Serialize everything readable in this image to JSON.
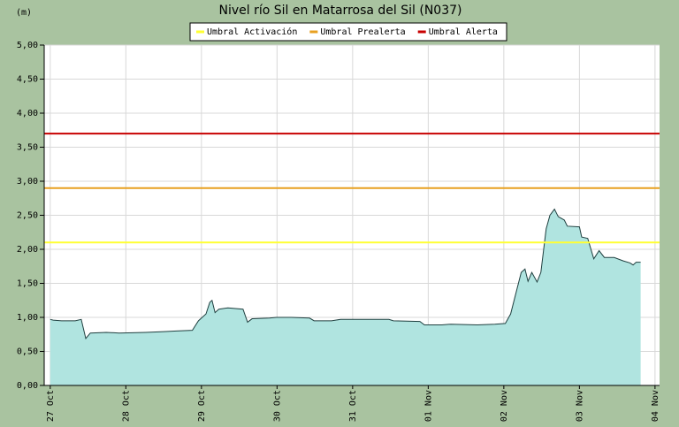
{
  "chart_data": {
    "type": "area",
    "title": "Nivel río Sil en Matarrosa del Sil  (N037)",
    "y_label": "(m)",
    "series": [
      {
        "color": "#b0e4e0",
        "line_color": "#1f3f3f",
        "x": [
          0,
          0.04,
          0.15,
          0.33,
          0.41,
          0.47,
          0.53,
          0.74,
          0.91,
          1.26,
          1.5,
          1.67,
          1.88,
          1.96,
          2.06,
          2.11,
          2.14,
          2.18,
          2.23,
          2.35,
          2.55,
          2.61,
          2.67,
          2.9,
          2.99,
          3.19,
          3.43,
          3.49,
          3.72,
          3.84,
          4.48,
          4.54,
          4.89,
          4.95,
          5.18,
          5.3,
          5.65,
          5.88,
          6.02,
          6.09,
          6.17,
          6.23,
          6.28,
          6.32,
          6.37,
          6.44,
          6.49,
          6.56,
          6.61,
          6.67,
          6.72,
          6.8,
          6.84,
          7.0,
          7.03,
          7.11,
          7.19,
          7.26,
          7.33,
          7.46,
          7.58,
          7.67,
          7.71,
          7.75,
          7.81
        ],
        "values": [
          0.97,
          0.96,
          0.95,
          0.95,
          0.97,
          0.69,
          0.77,
          0.78,
          0.77,
          0.78,
          0.79,
          0.8,
          0.81,
          0.95,
          1.05,
          1.22,
          1.25,
          1.07,
          1.12,
          1.14,
          1.12,
          0.93,
          0.98,
          0.99,
          1.0,
          1.0,
          0.99,
          0.95,
          0.95,
          0.97,
          0.97,
          0.95,
          0.94,
          0.89,
          0.89,
          0.9,
          0.89,
          0.9,
          0.91,
          1.05,
          1.4,
          1.66,
          1.71,
          1.53,
          1.66,
          1.52,
          1.66,
          2.3,
          2.5,
          2.59,
          2.48,
          2.43,
          2.34,
          2.33,
          2.18,
          2.16,
          1.86,
          1.98,
          1.88,
          1.88,
          1.83,
          1.8,
          1.77,
          1.81,
          1.81
        ]
      }
    ],
    "thresholds": [
      {
        "name": "Umbral Activación",
        "color": "#ffff33",
        "value": 2.1
      },
      {
        "name": "Umbral Prealerta",
        "color": "#e8a020",
        "value": 2.9
      },
      {
        "name": "Umbral Alerta",
        "color": "#c80000",
        "value": 3.7
      }
    ],
    "xlim": [
      -0.08,
      8.06
    ],
    "ylim": [
      0,
      5
    ],
    "xticks": [
      {
        "value": 0,
        "label": "27 Oct"
      },
      {
        "value": 1,
        "label": "28 Oct"
      },
      {
        "value": 2,
        "label": "29 Oct"
      },
      {
        "value": 3,
        "label": "30 Oct"
      },
      {
        "value": 4,
        "label": "31 Oct"
      },
      {
        "value": 5,
        "label": "01 Nov"
      },
      {
        "value": 6,
        "label": "02 Nov"
      },
      {
        "value": 7,
        "label": "03 Nov"
      },
      {
        "value": 8,
        "label": "04 Nov"
      }
    ],
    "yticks": [
      {
        "value": 0,
        "label": "0,00"
      },
      {
        "value": 0.5,
        "label": "0,50"
      },
      {
        "value": 1,
        "label": "1,00"
      },
      {
        "value": 1.5,
        "label": "1,50"
      },
      {
        "value": 2,
        "label": "2,00"
      },
      {
        "value": 2.5,
        "label": "2,50"
      },
      {
        "value": 3,
        "label": "3,00"
      },
      {
        "value": 3.5,
        "label": "3,50"
      },
      {
        "value": 4,
        "label": "4,00"
      },
      {
        "value": 4.5,
        "label": "4,50"
      },
      {
        "value": 5,
        "label": "5,00"
      }
    ],
    "grid": true
  }
}
